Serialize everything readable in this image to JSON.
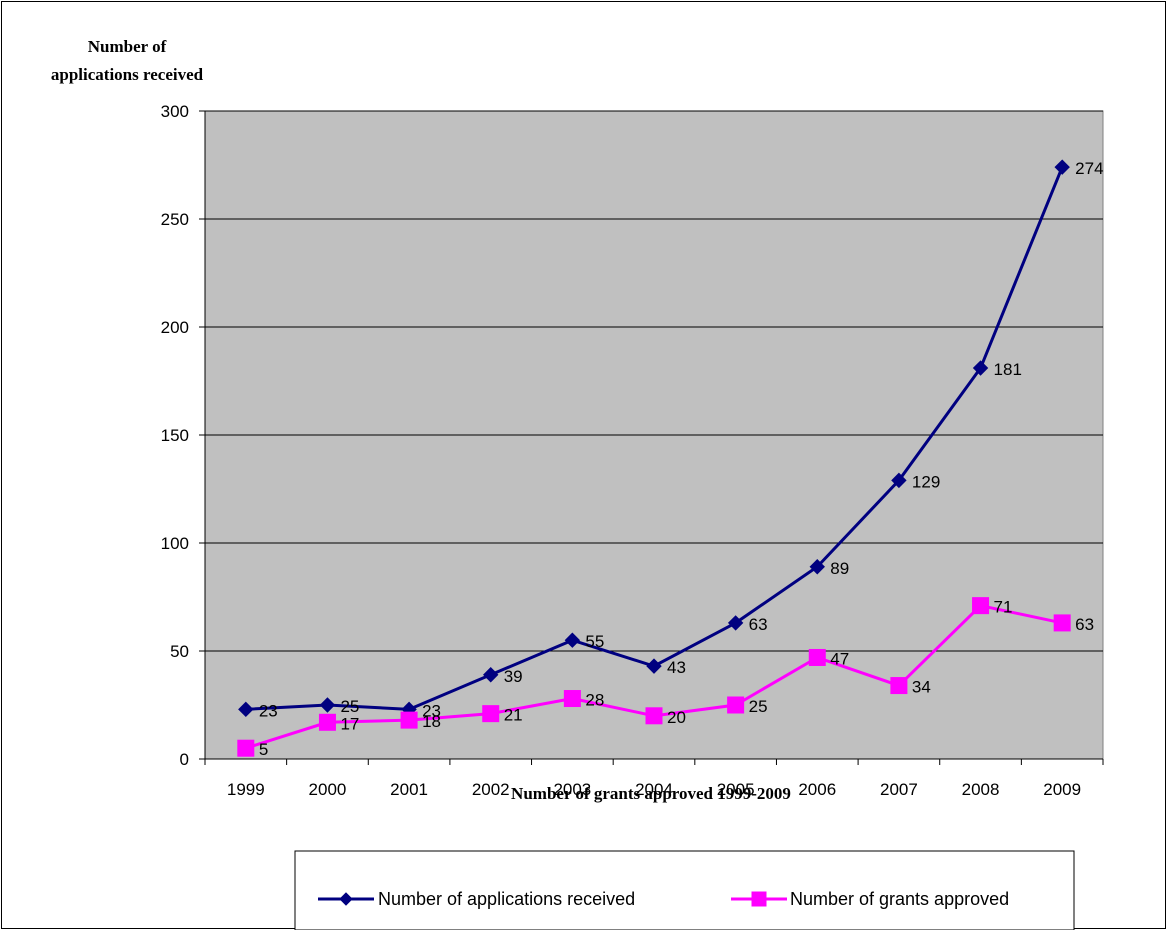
{
  "chart_data": {
    "type": "line",
    "title": "",
    "ylabel_line1": "Number of",
    "ylabel_line2": "applications received",
    "xlabel": "Number of grants approved 1999-2009",
    "categories": [
      "1999",
      "2000",
      "2001",
      "2002",
      "2003",
      "2004",
      "2005",
      "2006",
      "2007",
      "2008",
      "2009"
    ],
    "ylim": [
      0,
      300
    ],
    "yticks": [
      0,
      50,
      100,
      150,
      200,
      250,
      300
    ],
    "grid": true,
    "legend_position": "bottom",
    "series": [
      {
        "name": "Number of applications received",
        "color": "#000080",
        "marker": "diamond",
        "values": [
          23,
          25,
          23,
          39,
          55,
          43,
          63,
          89,
          129,
          181,
          274
        ]
      },
      {
        "name": "Number of grants approved",
        "color": "#FF00FF",
        "marker": "square",
        "values": [
          5,
          17,
          18,
          21,
          28,
          20,
          25,
          47,
          34,
          71,
          63
        ]
      }
    ]
  },
  "colors": {
    "plot_background": "#C0C0C0",
    "gridline": "#000000"
  }
}
